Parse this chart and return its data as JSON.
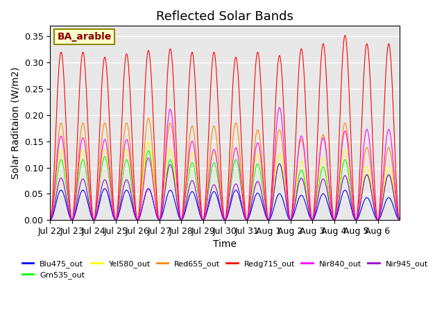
{
  "title": "Reflected Solar Bands",
  "xlabel": "Time",
  "ylabel": "Solar Raditaion (W/m2)",
  "annotation": "BA_arable",
  "ylim": [
    0,
    0.37
  ],
  "n_days": 16,
  "background_color": "#e8e8e8",
  "series": [
    {
      "name": "Blu475_out",
      "color": "#0000ff",
      "peak_scale": 0.057
    },
    {
      "name": "Grn535_out",
      "color": "#00ff00",
      "peak_scale": 0.115
    },
    {
      "name": "Yel580_out",
      "color": "#ffff00",
      "peak_scale": 0.135
    },
    {
      "name": "Red655_out",
      "color": "#ff8800",
      "peak_scale": 0.185
    },
    {
      "name": "Redg715_out",
      "color": "#ff0000",
      "peak_scale": 0.32
    },
    {
      "name": "Nir840_out",
      "color": "#ff00ff",
      "peak_scale": 0.32
    },
    {
      "name": "Nir945_out",
      "color": "#9900cc",
      "peak_scale": 0.16
    }
  ],
  "xtick_labels": [
    "Jul 22",
    "Jul 23",
    "Jul 24",
    "Jul 25",
    "Jul 26",
    "Jul 27",
    "Jul 28",
    "Jul 29",
    "Jul 30",
    "Jul 31",
    "Aug 1",
    "Aug 2",
    "Aug 3",
    "Aug 4",
    "Aug 5",
    "Aug 6"
  ],
  "ytick_labels": [
    "0.00",
    "0.05",
    "0.10",
    "0.15",
    "0.20",
    "0.25",
    "0.30",
    "0.35"
  ],
  "ytick_values": [
    0.0,
    0.05,
    0.1,
    0.15,
    0.2,
    0.25,
    0.3,
    0.35
  ],
  "grid_color": "#ffffff",
  "title_fontsize": 13,
  "axis_fontsize": 10,
  "tick_fontsize": 9,
  "legend_fontsize": 8,
  "annotation_fontsize": 10,
  "day_variations": {
    "Redg715_out": [
      1.0,
      1.0,
      0.97,
      0.99,
      1.01,
      1.02,
      1.0,
      1.0,
      0.97,
      1.0,
      0.98,
      1.02,
      1.05,
      1.1,
      1.05,
      1.05
    ],
    "Nir840_out": [
      0.5,
      0.49,
      0.48,
      0.48,
      0.37,
      0.66,
      0.47,
      0.42,
      0.43,
      0.46,
      0.67,
      0.5,
      0.49,
      0.53,
      0.54,
      0.54
    ],
    "Nir945_out": [
      0.5,
      0.49,
      0.48,
      0.48,
      0.37,
      0.66,
      0.47,
      0.42,
      0.43,
      0.46,
      0.67,
      0.5,
      0.49,
      0.53,
      0.54,
      0.54
    ],
    "Blu475_out": [
      1.0,
      1.0,
      1.05,
      1.0,
      1.05,
      1.0,
      0.95,
      0.95,
      1.0,
      0.9,
      0.88,
      0.83,
      0.88,
      1.0,
      0.75,
      0.75
    ],
    "Grn535_out": [
      1.0,
      1.0,
      1.05,
      1.0,
      1.15,
      1.0,
      0.95,
      0.95,
      1.0,
      0.93,
      0.93,
      0.83,
      0.88,
      1.0,
      0.75,
      0.75
    ],
    "Yel580_out": [
      1.0,
      1.0,
      1.0,
      1.0,
      1.1,
      1.0,
      0.95,
      0.95,
      1.0,
      0.93,
      0.93,
      0.83,
      0.88,
      1.0,
      0.75,
      0.75
    ],
    "Red655_out": [
      1.0,
      1.0,
      1.0,
      1.0,
      1.05,
      1.0,
      0.97,
      0.97,
      1.0,
      0.93,
      0.93,
      0.83,
      0.88,
      1.0,
      0.75,
      0.75
    ]
  }
}
